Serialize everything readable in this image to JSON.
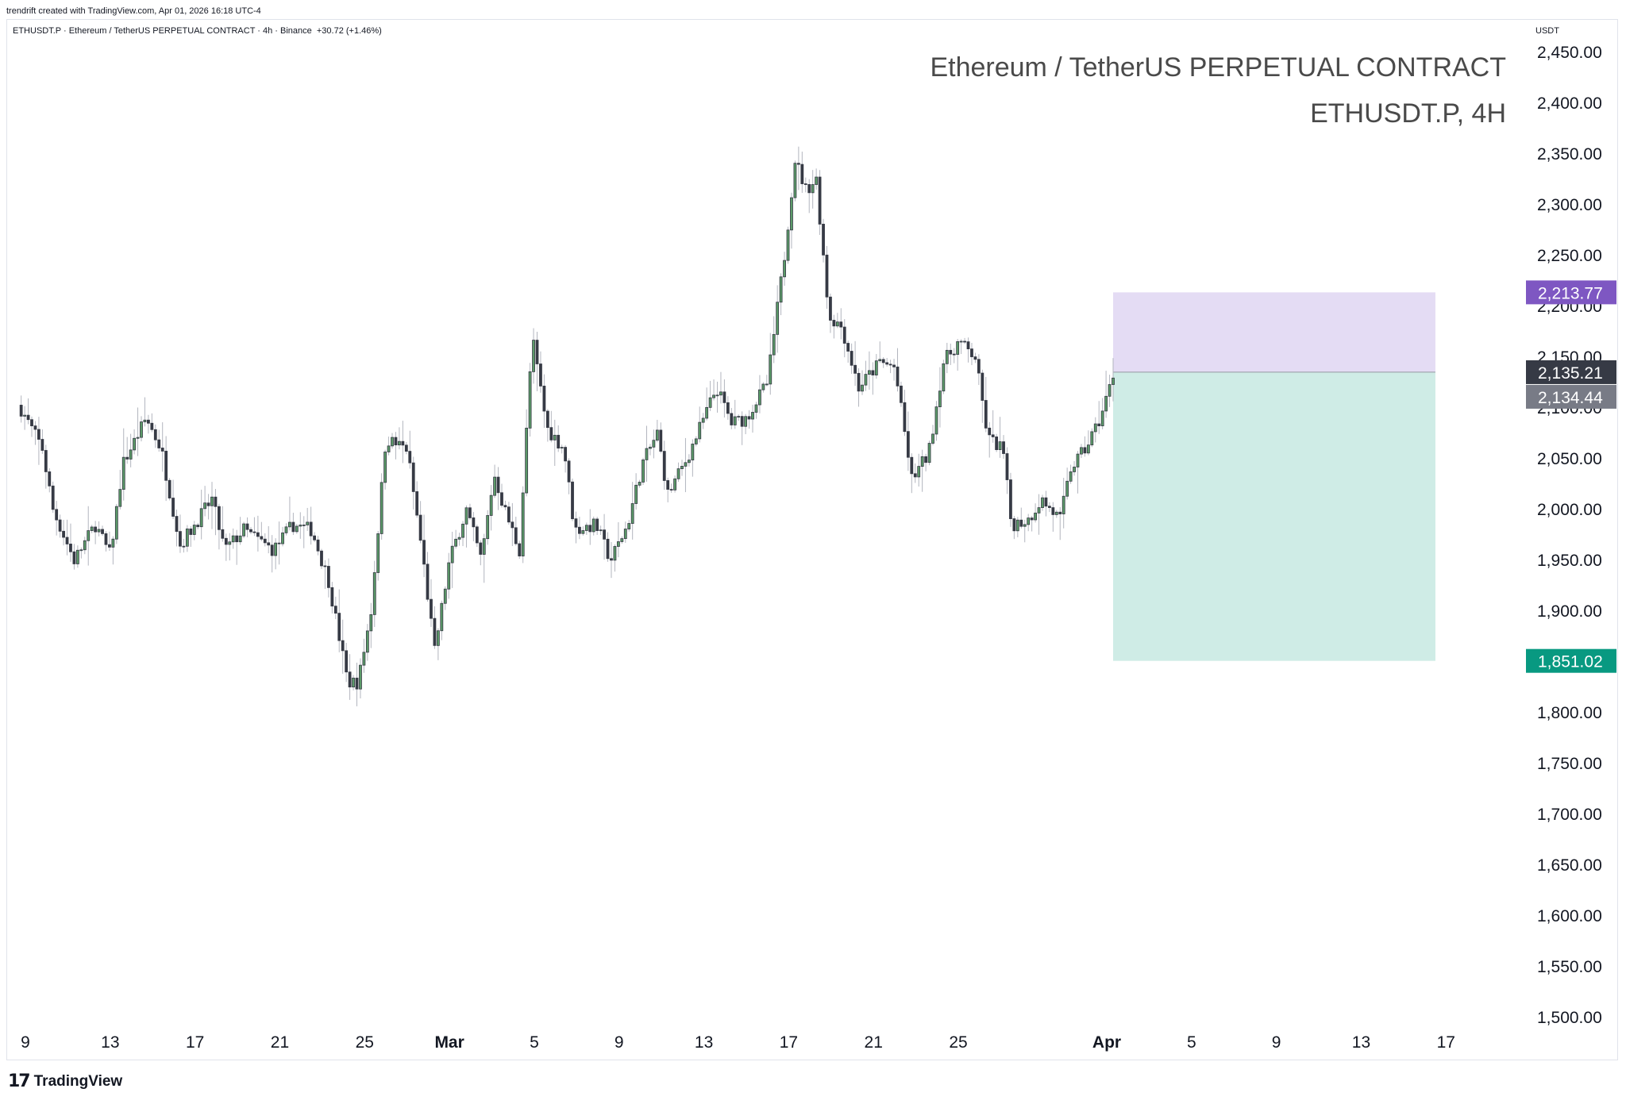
{
  "header": {
    "credit": "trendrift created with TradingView.com, Apr 01, 2026 16:18 UTC-4",
    "legend": "ETHUSDT.P · Ethereum / TetherUS PERPETUAL CONTRACT · 4h · Binance  +30.72 (+1.46%)",
    "unit": "USDT"
  },
  "watermark": {
    "line1": "Ethereum / TetherUS PERPETUAL CONTRACT",
    "line2": "ETHUSDT.P, 4H"
  },
  "footer": {
    "brand": "TradingView",
    "logo_icon": "tradingview-logo-icon"
  },
  "colors": {
    "up": "#5b9a68",
    "down": "#363a45",
    "wick": "#b2b5be",
    "stop_zone": "#e4dcf4",
    "target_zone": "#cfece6",
    "stop_label": "#7e57c2",
    "target_label": "#089981",
    "last_label": "#363a45",
    "prev_label": "#787b86"
  },
  "chart_data": {
    "type": "candlestick",
    "symbol": "ETHUSDT.P",
    "timeframe": "4h",
    "ylim": [
      1475,
      2475
    ],
    "y_ticks": [
      2450,
      2400,
      2350,
      2300,
      2250,
      2200,
      2150,
      2100,
      2050,
      2000,
      1950,
      1900,
      1850,
      1800,
      1750,
      1700,
      1650,
      1600,
      1550,
      1500
    ],
    "y_tick_labels": [
      "2,450.00",
      "2,400.00",
      "2,350.00",
      "2,300.00",
      "2,250.00",
      "2,200.00",
      "2,150.00",
      "2,100.00",
      "2,050.00",
      "2,000.00",
      "1,950.00",
      "1,900.00",
      "1,850.00",
      "1,800.00",
      "1,750.00",
      "1,700.00",
      "1,650.00",
      "1,600.00",
      "1,550.00",
      "1,500.00"
    ],
    "x_axis": {
      "unit": "day index (0 = Feb 9)",
      "range": [
        -0.3,
        68.0
      ],
      "ticks": [
        {
          "label": "9",
          "x": 0,
          "bold": false
        },
        {
          "label": "13",
          "x": 4,
          "bold": false
        },
        {
          "label": "17",
          "x": 8,
          "bold": false
        },
        {
          "label": "21",
          "x": 12,
          "bold": false
        },
        {
          "label": "25",
          "x": 16,
          "bold": false
        },
        {
          "label": "Mar",
          "x": 20,
          "bold": true
        },
        {
          "label": "5",
          "x": 24,
          "bold": false
        },
        {
          "label": "9",
          "x": 28,
          "bold": false
        },
        {
          "label": "13",
          "x": 32,
          "bold": false
        },
        {
          "label": "17",
          "x": 36,
          "bold": false
        },
        {
          "label": "21",
          "x": 40,
          "bold": false
        },
        {
          "label": "25",
          "x": 44,
          "bold": false
        },
        {
          "label": "Apr",
          "x": 51,
          "bold": true
        },
        {
          "label": "5",
          "x": 55,
          "bold": false
        },
        {
          "label": "9",
          "x": 59,
          "bold": false
        },
        {
          "label": "13",
          "x": 63,
          "bold": false
        },
        {
          "label": "17",
          "x": 67,
          "bold": false
        }
      ]
    },
    "price_path": [
      [
        -1.0,
        2130
      ],
      [
        0.8,
        2060
      ],
      [
        1.3,
        2000
      ],
      [
        2.3,
        1950
      ],
      [
        3.3,
        1985
      ],
      [
        4.0,
        1955
      ],
      [
        4.6,
        2045
      ],
      [
        5.7,
        2090
      ],
      [
        6.4,
        2060
      ],
      [
        7.3,
        1965
      ],
      [
        7.8,
        1980
      ],
      [
        8.8,
        2010
      ],
      [
        9.4,
        1960
      ],
      [
        10.3,
        1980
      ],
      [
        11.7,
        1960
      ],
      [
        12.6,
        1985
      ],
      [
        13.5,
        1980
      ],
      [
        14.3,
        1930
      ],
      [
        15.2,
        1830
      ],
      [
        15.7,
        1830
      ],
      [
        16.3,
        1900
      ],
      [
        17.0,
        2070
      ],
      [
        17.4,
        2065
      ],
      [
        18.0,
        2060
      ],
      [
        18.7,
        1960
      ],
      [
        19.3,
        1860
      ],
      [
        20.0,
        1950
      ],
      [
        20.8,
        2000
      ],
      [
        21.5,
        1950
      ],
      [
        22.1,
        2035
      ],
      [
        22.6,
        2000
      ],
      [
        23.3,
        1960
      ],
      [
        23.9,
        2170
      ],
      [
        24.6,
        2080
      ],
      [
        25.4,
        2060
      ],
      [
        25.9,
        1980
      ],
      [
        26.9,
        1985
      ],
      [
        27.6,
        1950
      ],
      [
        28.4,
        1985
      ],
      [
        29.1,
        2045
      ],
      [
        29.8,
        2075
      ],
      [
        30.3,
        2015
      ],
      [
        31.2,
        2050
      ],
      [
        32.0,
        2090
      ],
      [
        32.6,
        2120
      ],
      [
        33.3,
        2085
      ],
      [
        34.0,
        2090
      ],
      [
        35.0,
        2125
      ],
      [
        35.8,
        2250
      ],
      [
        36.3,
        2345
      ],
      [
        36.8,
        2315
      ],
      [
        37.3,
        2325
      ],
      [
        37.9,
        2190
      ],
      [
        38.5,
        2180
      ],
      [
        39.3,
        2120
      ],
      [
        40.3,
        2145
      ],
      [
        41.0,
        2140
      ],
      [
        41.8,
        2030
      ],
      [
        42.6,
        2055
      ],
      [
        43.3,
        2145
      ],
      [
        44.0,
        2165
      ],
      [
        44.8,
        2150
      ],
      [
        45.4,
        2070
      ],
      [
        46.1,
        2060
      ],
      [
        46.5,
        1985
      ],
      [
        47.3,
        1990
      ],
      [
        47.9,
        2010
      ],
      [
        48.8,
        1990
      ],
      [
        49.3,
        2040
      ],
      [
        50.0,
        2060
      ],
      [
        50.7,
        2090
      ],
      [
        51.3,
        2132
      ]
    ],
    "last_price": {
      "label": "2,135.21",
      "value": 2135.21
    },
    "prev_close": {
      "label": "2,134.44",
      "value": 2134.44
    },
    "position": {
      "type": "short",
      "x_start": 51.3,
      "x_end": 66.5,
      "entry": 2135.21,
      "stop": {
        "label": "2,213.77",
        "value": 2213.77
      },
      "target": {
        "label": "1,851.02",
        "value": 1851.02
      }
    }
  }
}
